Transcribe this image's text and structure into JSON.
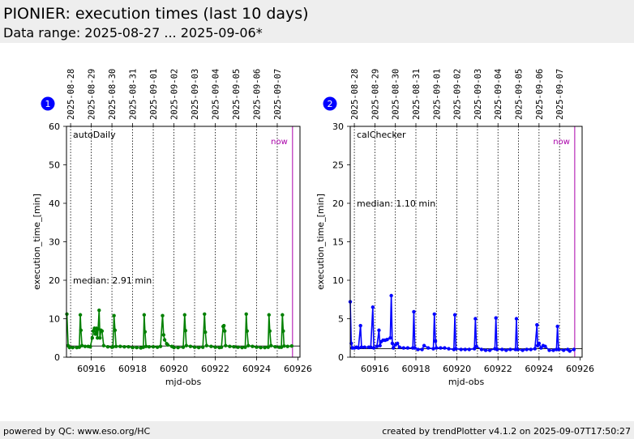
{
  "header": {
    "title": "PIONIER: execution times (last 10 days)",
    "subtitle": "Data range: 2025-08-27 ... 2025-09-06*"
  },
  "footer": {
    "left": "powered by QC: www.eso.org/HC",
    "right": "created by trendPlotter v4.1.2 on 2025-09-07T17:50:27"
  },
  "chart_data": [
    {
      "type": "scatter",
      "badge": "1",
      "label": "autoDaily",
      "now_label": "now",
      "median_text": "median: 2.91 min",
      "xlabel": "mjd-obs",
      "ylabel": "execution_time_[min]",
      "xlim": [
        60914.8,
        60926.1
      ],
      "ylim": [
        0,
        60
      ],
      "x_ticks": [
        60916,
        60918,
        60920,
        60922,
        60924,
        60926
      ],
      "y_ticks": [
        0,
        10,
        20,
        30,
        40,
        50,
        60
      ],
      "date_ticks": [
        {
          "x": 60915.0,
          "label": "2025-08-28"
        },
        {
          "x": 60916.0,
          "label": "2025-08-29"
        },
        {
          "x": 60917.0,
          "label": "2025-08-30"
        },
        {
          "x": 60918.0,
          "label": "2025-08-31"
        },
        {
          "x": 60919.0,
          "label": "2025-09-01"
        },
        {
          "x": 60920.0,
          "label": "2025-09-02"
        },
        {
          "x": 60921.0,
          "label": "2025-09-03"
        },
        {
          "x": 60922.0,
          "label": "2025-09-04"
        },
        {
          "x": 60923.0,
          "label": "2025-09-05"
        },
        {
          "x": 60924.0,
          "label": "2025-09-06"
        },
        {
          "x": 60925.0,
          "label": "2025-09-07"
        }
      ],
      "now_x": 60925.74,
      "median": 2.91,
      "color": "#008000",
      "series": [
        {
          "points": [
            [
              60914.82,
              11.2
            ],
            [
              60914.88,
              3.0
            ],
            [
              60914.95,
              2.5
            ],
            [
              60915.1,
              2.5
            ],
            [
              60915.3,
              2.5
            ],
            [
              60915.42,
              2.6
            ],
            [
              60915.47,
              11.0
            ],
            [
              60915.5,
              7.0
            ],
            [
              60915.55,
              3.0
            ],
            [
              60915.7,
              2.8
            ],
            [
              60915.85,
              2.8
            ],
            [
              60915.95,
              2.7
            ],
            [
              60916.05,
              5.0
            ],
            [
              60916.1,
              6.8
            ],
            [
              60916.15,
              7.5
            ],
            [
              60916.2,
              6.0
            ],
            [
              60916.25,
              7.5
            ],
            [
              60916.3,
              5.0
            ],
            [
              60916.33,
              7.3
            ],
            [
              60916.38,
              12.2
            ],
            [
              60916.42,
              5.0
            ],
            [
              60916.47,
              7.0
            ],
            [
              60916.52,
              6.8
            ],
            [
              60916.6,
              3.0
            ],
            [
              60916.8,
              2.7
            ],
            [
              60917.0,
              2.6
            ],
            [
              60917.05,
              2.7
            ],
            [
              60917.1,
              10.8
            ],
            [
              60917.15,
              7.0
            ],
            [
              60917.2,
              2.8
            ],
            [
              60917.4,
              2.8
            ],
            [
              60917.6,
              2.7
            ],
            [
              60917.8,
              2.7
            ],
            [
              60918.0,
              2.5
            ],
            [
              60918.2,
              2.5
            ],
            [
              60918.4,
              2.4
            ],
            [
              60918.52,
              2.6
            ],
            [
              60918.56,
              11.0
            ],
            [
              60918.6,
              6.6
            ],
            [
              60918.65,
              2.8
            ],
            [
              60918.8,
              2.7
            ],
            [
              60919.0,
              2.7
            ],
            [
              60919.2,
              2.6
            ],
            [
              60919.35,
              2.8
            ],
            [
              60919.45,
              10.8
            ],
            [
              60919.5,
              5.8
            ],
            [
              60919.55,
              4.5
            ],
            [
              60919.65,
              3.5
            ],
            [
              60919.7,
              3.2
            ],
            [
              60919.9,
              2.8
            ],
            [
              60920.0,
              2.5
            ],
            [
              60920.2,
              2.5
            ],
            [
              60920.45,
              2.6
            ],
            [
              60920.52,
              11.0
            ],
            [
              60920.56,
              6.9
            ],
            [
              60920.6,
              3.0
            ],
            [
              60920.8,
              2.8
            ],
            [
              60921.0,
              2.6
            ],
            [
              60921.2,
              2.5
            ],
            [
              60921.4,
              2.6
            ],
            [
              60921.48,
              11.2
            ],
            [
              60921.52,
              6.5
            ],
            [
              60921.58,
              3.0
            ],
            [
              60921.8,
              2.8
            ],
            [
              60922.0,
              2.6
            ],
            [
              60922.2,
              2.5
            ],
            [
              60922.3,
              2.6
            ],
            [
              60922.38,
              8.0
            ],
            [
              60922.42,
              8.2
            ],
            [
              60922.46,
              6.8
            ],
            [
              60922.5,
              3.0
            ],
            [
              60922.7,
              2.8
            ],
            [
              60922.9,
              2.7
            ],
            [
              60923.1,
              2.6
            ],
            [
              60923.3,
              2.5
            ],
            [
              60923.45,
              2.6
            ],
            [
              60923.5,
              11.2
            ],
            [
              60923.54,
              6.8
            ],
            [
              60923.6,
              3.0
            ],
            [
              60923.8,
              2.8
            ],
            [
              60924.0,
              2.6
            ],
            [
              60924.2,
              2.5
            ],
            [
              60924.4,
              2.5
            ],
            [
              60924.56,
              2.6
            ],
            [
              60924.6,
              11.0
            ],
            [
              60924.64,
              6.8
            ],
            [
              60924.7,
              3.0
            ],
            [
              60924.9,
              2.7
            ],
            [
              60925.1,
              2.6
            ],
            [
              60925.2,
              2.6
            ],
            [
              60925.25,
              11.0
            ],
            [
              60925.29,
              6.8
            ],
            [
              60925.33,
              2.9
            ],
            [
              60925.5,
              2.8
            ],
            [
              60925.7,
              2.9
            ]
          ]
        }
      ]
    },
    {
      "type": "scatter",
      "badge": "2",
      "label": "calChecker",
      "now_label": "now",
      "median_text": "median: 1.10 min",
      "xlabel": "mjd-obs",
      "ylabel": "execution_time_[min]",
      "xlim": [
        60914.8,
        60926.1
      ],
      "ylim": [
        0,
        30
      ],
      "x_ticks": [
        60916,
        60918,
        60920,
        60922,
        60924,
        60926
      ],
      "y_ticks": [
        0,
        5,
        10,
        15,
        20,
        25,
        30
      ],
      "date_ticks": [
        {
          "x": 60915.0,
          "label": "2025-08-28"
        },
        {
          "x": 60916.0,
          "label": "2025-08-29"
        },
        {
          "x": 60917.0,
          "label": "2025-08-30"
        },
        {
          "x": 60918.0,
          "label": "2025-08-31"
        },
        {
          "x": 60919.0,
          "label": "2025-09-01"
        },
        {
          "x": 60920.0,
          "label": "2025-09-02"
        },
        {
          "x": 60921.0,
          "label": "2025-09-03"
        },
        {
          "x": 60922.0,
          "label": "2025-09-04"
        },
        {
          "x": 60923.0,
          "label": "2025-09-05"
        },
        {
          "x": 60924.0,
          "label": "2025-09-06"
        },
        {
          "x": 60925.0,
          "label": "2025-09-07"
        }
      ],
      "now_x": 60925.74,
      "median": 1.1,
      "color": "#0000ff",
      "series": [
        {
          "points": [
            [
              60914.8,
              7.2
            ],
            [
              60914.85,
              1.8
            ],
            [
              60914.9,
              1.2
            ],
            [
              60915.0,
              1.2
            ],
            [
              60915.1,
              1.3
            ],
            [
              60915.2,
              1.2
            ],
            [
              60915.3,
              4.1
            ],
            [
              60915.35,
              1.3
            ],
            [
              60915.5,
              1.3
            ],
            [
              60915.7,
              1.3
            ],
            [
              60915.8,
              1.3
            ],
            [
              60915.9,
              6.5
            ],
            [
              60915.95,
              1.2
            ],
            [
              60916.1,
              1.4
            ],
            [
              60916.2,
              3.5
            ],
            [
              60916.25,
              1.5
            ],
            [
              60916.3,
              2.0
            ],
            [
              60916.4,
              2.2
            ],
            [
              60916.5,
              2.2
            ],
            [
              60916.6,
              2.3
            ],
            [
              60916.75,
              2.5
            ],
            [
              60916.8,
              8.0
            ],
            [
              60916.85,
              1.8
            ],
            [
              60916.9,
              1.2
            ],
            [
              60917.0,
              1.6
            ],
            [
              60917.1,
              1.8
            ],
            [
              60917.2,
              1.3
            ],
            [
              60917.4,
              1.2
            ],
            [
              60917.6,
              1.2
            ],
            [
              60917.85,
              1.2
            ],
            [
              60917.9,
              5.9
            ],
            [
              60917.95,
              1.2
            ],
            [
              60918.1,
              1.0
            ],
            [
              60918.3,
              1.0
            ],
            [
              60918.4,
              1.5
            ],
            [
              60918.6,
              1.2
            ],
            [
              60918.85,
              1.1
            ],
            [
              60918.9,
              5.6
            ],
            [
              60918.95,
              2.1
            ],
            [
              60919.0,
              1.2
            ],
            [
              60919.2,
              1.2
            ],
            [
              60919.4,
              1.2
            ],
            [
              60919.6,
              1.1
            ],
            [
              60919.85,
              1.0
            ],
            [
              60919.9,
              5.5
            ],
            [
              60919.95,
              1.1
            ],
            [
              60920.2,
              1.0
            ],
            [
              60920.4,
              1.0
            ],
            [
              60920.6,
              1.0
            ],
            [
              60920.85,
              1.1
            ],
            [
              60920.9,
              5.0
            ],
            [
              60920.95,
              1.4
            ],
            [
              60921.2,
              1.0
            ],
            [
              60921.4,
              0.9
            ],
            [
              60921.6,
              0.9
            ],
            [
              60921.85,
              1.1
            ],
            [
              60921.9,
              5.1
            ],
            [
              60921.95,
              1.0
            ],
            [
              60922.2,
              1.0
            ],
            [
              60922.4,
              0.9
            ],
            [
              60922.6,
              1.0
            ],
            [
              60922.85,
              1.0
            ],
            [
              60922.9,
              5.0
            ],
            [
              60922.95,
              1.0
            ],
            [
              60923.2,
              0.9
            ],
            [
              60923.4,
              1.0
            ],
            [
              60923.6,
              1.0
            ],
            [
              60923.8,
              1.1
            ],
            [
              60923.9,
              4.2
            ],
            [
              60923.93,
              1.5
            ],
            [
              60924.0,
              1.8
            ],
            [
              60924.1,
              1.2
            ],
            [
              60924.2,
              1.5
            ],
            [
              60924.3,
              1.4
            ],
            [
              60924.5,
              0.9
            ],
            [
              60924.7,
              0.9
            ],
            [
              60924.85,
              1.0
            ],
            [
              60924.9,
              4.0
            ],
            [
              60924.95,
              1.0
            ],
            [
              60925.2,
              0.9
            ],
            [
              60925.4,
              1.0
            ],
            [
              60925.5,
              0.8
            ],
            [
              60925.7,
              1.0
            ]
          ]
        }
      ]
    }
  ]
}
